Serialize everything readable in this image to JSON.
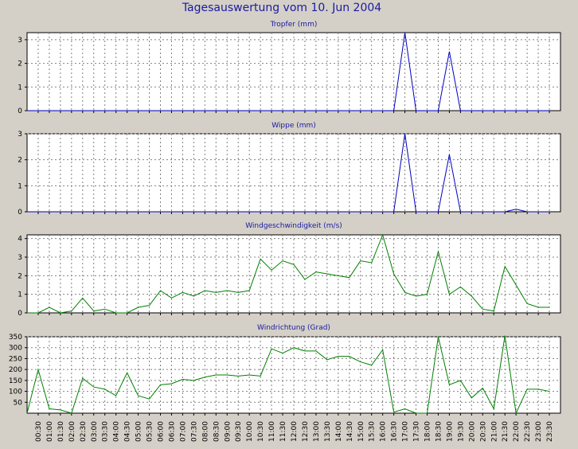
{
  "title": "Tagesauswertung vom 10. Jun 2004",
  "x_tick_labels": [
    "00:30",
    "01:00",
    "01:30",
    "02:00",
    "02:30",
    "03:00",
    "03:30",
    "04:00",
    "04:30",
    "05:00",
    "05:30",
    "06:00",
    "06:30",
    "07:00",
    "07:30",
    "08:00",
    "08:30",
    "09:00",
    "09:30",
    "10:00",
    "10:30",
    "11:00",
    "11:30",
    "12:00",
    "12:30",
    "13:00",
    "13:30",
    "14:00",
    "14:30",
    "15:00",
    "15:30",
    "16:00",
    "16:30",
    "17:00",
    "17:30",
    "18:00",
    "18:30",
    "19:00",
    "19:30",
    "20:00",
    "20:30",
    "21:00",
    "21:30",
    "22:00",
    "22:30",
    "23:00",
    "23:30"
  ],
  "chart_data": [
    {
      "type": "line",
      "title": "Tropfer (mm)",
      "color": "#0000c0",
      "ylim": [
        0,
        3.3
      ],
      "yticks": [
        0,
        1,
        2,
        3
      ],
      "grid": true,
      "x": [
        "00:00",
        "00:30",
        "01:00",
        "01:30",
        "02:00",
        "02:30",
        "03:00",
        "03:30",
        "04:00",
        "04:30",
        "05:00",
        "05:30",
        "06:00",
        "06:30",
        "07:00",
        "07:30",
        "08:00",
        "08:30",
        "09:00",
        "09:30",
        "10:00",
        "10:30",
        "11:00",
        "11:30",
        "12:00",
        "12:30",
        "13:00",
        "13:30",
        "14:00",
        "14:30",
        "15:00",
        "15:30",
        "16:00",
        "16:30",
        "17:00",
        "17:30",
        "18:00",
        "18:30",
        "19:00",
        "19:30",
        "20:00",
        "20:30",
        "21:00",
        "21:30",
        "22:00",
        "22:30",
        "23:00",
        "23:30"
      ],
      "values": [
        0,
        0,
        0,
        0,
        0,
        0,
        0,
        0,
        0,
        0,
        0,
        0,
        0,
        0,
        0,
        0,
        0,
        0,
        0,
        0,
        0,
        0,
        0,
        0,
        0,
        0,
        0,
        0,
        0,
        0,
        0,
        0,
        0,
        0,
        3.3,
        0,
        0,
        0,
        2.5,
        0,
        0,
        0,
        0,
        0,
        0,
        0,
        0,
        0
      ]
    },
    {
      "type": "line",
      "title": "Wippe (mm)",
      "color": "#0000c0",
      "ylim": [
        0,
        3.0
      ],
      "yticks": [
        0,
        1,
        2,
        3
      ],
      "grid": true,
      "x": [
        "00:00",
        "00:30",
        "01:00",
        "01:30",
        "02:00",
        "02:30",
        "03:00",
        "03:30",
        "04:00",
        "04:30",
        "05:00",
        "05:30",
        "06:00",
        "06:30",
        "07:00",
        "07:30",
        "08:00",
        "08:30",
        "09:00",
        "09:30",
        "10:00",
        "10:30",
        "11:00",
        "11:30",
        "12:00",
        "12:30",
        "13:00",
        "13:30",
        "14:00",
        "14:30",
        "15:00",
        "15:30",
        "16:00",
        "16:30",
        "17:00",
        "17:30",
        "18:00",
        "18:30",
        "19:00",
        "19:30",
        "20:00",
        "20:30",
        "21:00",
        "21:30",
        "22:00",
        "22:30",
        "23:00",
        "23:30"
      ],
      "values": [
        0,
        0,
        0,
        0,
        0,
        0,
        0,
        0,
        0,
        0,
        0,
        0,
        0,
        0,
        0,
        0,
        0,
        0,
        0,
        0,
        0,
        0,
        0,
        0,
        0,
        0,
        0,
        0,
        0,
        0,
        0,
        0,
        0,
        0,
        3.0,
        0,
        0,
        0,
        2.2,
        0,
        0,
        0,
        0,
        0,
        0.1,
        0,
        0,
        0
      ]
    },
    {
      "type": "line",
      "title": "Windgeschwindigkeit (m/s)",
      "color": "#008000",
      "ylim": [
        0,
        4.2
      ],
      "yticks": [
        0,
        1,
        2,
        3,
        4
      ],
      "grid": true,
      "x": [
        "00:00",
        "00:30",
        "01:00",
        "01:30",
        "02:00",
        "02:30",
        "03:00",
        "03:30",
        "04:00",
        "04:30",
        "05:00",
        "05:30",
        "06:00",
        "06:30",
        "07:00",
        "07:30",
        "08:00",
        "08:30",
        "09:00",
        "09:30",
        "10:00",
        "10:30",
        "11:00",
        "11:30",
        "12:00",
        "12:30",
        "13:00",
        "13:30",
        "14:00",
        "14:30",
        "15:00",
        "15:30",
        "16:00",
        "16:30",
        "17:00",
        "17:30",
        "18:00",
        "18:30",
        "19:00",
        "19:30",
        "20:00",
        "20:30",
        "21:00",
        "21:30",
        "22:00",
        "22:30",
        "23:00",
        "23:30"
      ],
      "values": [
        0,
        0,
        0.3,
        0,
        0.1,
        0.8,
        0.1,
        0.2,
        0,
        0,
        0.3,
        0.4,
        1.2,
        0.8,
        1.1,
        0.9,
        1.2,
        1.1,
        1.2,
        1.1,
        1.2,
        2.9,
        2.3,
        2.8,
        2.6,
        1.8,
        2.2,
        2.1,
        2.0,
        1.9,
        2.8,
        2.7,
        4.2,
        2.1,
        1.1,
        0.9,
        1.0,
        3.3,
        1.0,
        1.4,
        0.9,
        0.2,
        0.1,
        2.5,
        1.5,
        0.5,
        0.3,
        0.3
      ]
    },
    {
      "type": "line",
      "title": "Windrichtung (Grad)",
      "color": "#008000",
      "ylim": [
        0,
        350
      ],
      "yticks": [
        50,
        100,
        150,
        200,
        250,
        300,
        350
      ],
      "grid": true,
      "x": [
        "00:00",
        "00:30",
        "01:00",
        "01:30",
        "02:00",
        "02:30",
        "03:00",
        "03:30",
        "04:00",
        "04:30",
        "05:00",
        "05:30",
        "06:00",
        "06:30",
        "07:00",
        "07:30",
        "08:00",
        "08:30",
        "09:00",
        "09:30",
        "10:00",
        "10:30",
        "11:00",
        "11:30",
        "12:00",
        "12:30",
        "13:00",
        "13:30",
        "14:00",
        "14:30",
        "15:00",
        "15:30",
        "16:00",
        "16:30",
        "17:00",
        "17:30",
        "18:00",
        "18:30",
        "19:00",
        "19:30",
        "20:00",
        "20:30",
        "21:00",
        "21:30",
        "22:00",
        "22:30",
        "23:00",
        "23:30"
      ],
      "values": [
        0,
        200,
        20,
        15,
        0,
        160,
        120,
        110,
        80,
        185,
        80,
        65,
        130,
        135,
        155,
        150,
        165,
        175,
        175,
        170,
        175,
        170,
        295,
        275,
        300,
        285,
        285,
        245,
        260,
        260,
        235,
        220,
        290,
        5,
        20,
        0,
        0,
        350,
        130,
        150,
        70,
        115,
        20,
        355,
        0,
        110,
        110,
        100
      ]
    }
  ]
}
